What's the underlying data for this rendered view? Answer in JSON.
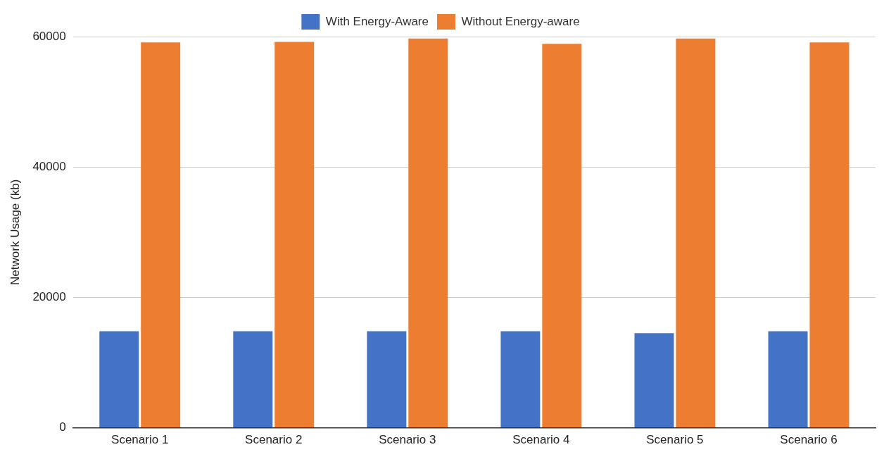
{
  "chart_data": {
    "type": "bar",
    "ylabel": "Network Usage (kb)",
    "categories": [
      "Scenario 1",
      "Scenario 2",
      "Scenario 3",
      "Scenario 4",
      "Scenario 5",
      "Scenario 6"
    ],
    "series": [
      {
        "name": "With Energy-Aware",
        "color": "#4472c4",
        "values": [
          14800,
          14800,
          14800,
          14800,
          14500,
          14800
        ]
      },
      {
        "name": "Without Energy-aware",
        "color": "#ed7d31",
        "values": [
          59100,
          59200,
          59700,
          58900,
          59700,
          59100
        ]
      }
    ],
    "ylim": [
      0,
      60000
    ],
    "yticks": [
      0,
      20000,
      40000,
      60000
    ],
    "grid": "y",
    "legend": "top"
  }
}
